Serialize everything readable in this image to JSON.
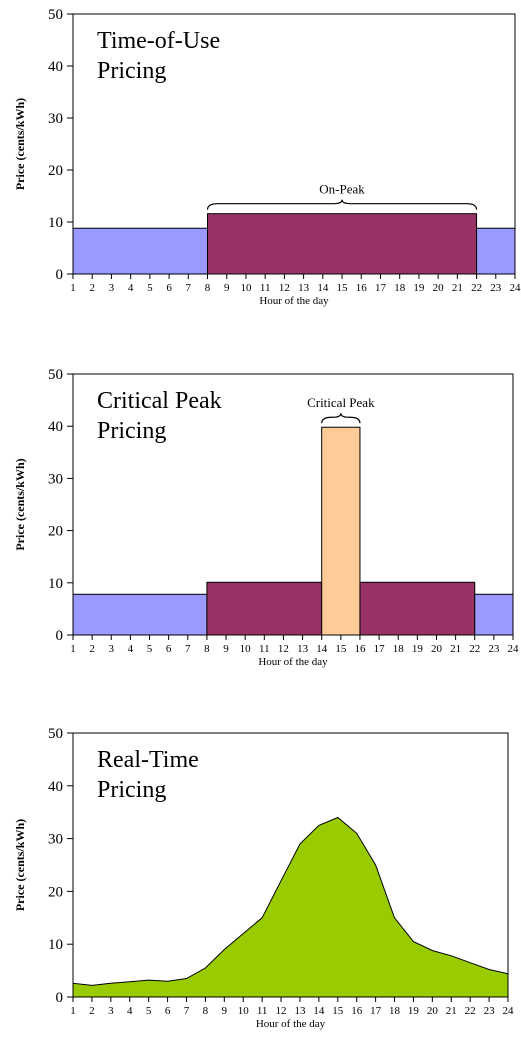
{
  "chart_data": [
    {
      "type": "bar",
      "title_lines": [
        "Time-of-Use",
        "Pricing"
      ],
      "xlabel": "Hour of the day",
      "ylabel": "Price (cents/kWh)",
      "ylim": [
        0,
        50
      ],
      "yticks": [
        0,
        10,
        20,
        30,
        40,
        50
      ],
      "xticks": [
        1,
        2,
        3,
        4,
        5,
        6,
        7,
        8,
        9,
        10,
        11,
        12,
        13,
        14,
        15,
        16,
        17,
        18,
        19,
        20,
        21,
        22,
        23,
        24
      ],
      "segments": [
        {
          "start": 1,
          "end": 8,
          "value": 8.8,
          "color": "#9999ff"
        },
        {
          "start": 8,
          "end": 22,
          "value": 11.6,
          "color": "#993366"
        },
        {
          "start": 22,
          "end": 24,
          "value": 8.8,
          "color": "#9999ff"
        }
      ],
      "annotation": {
        "text": "On-Peak",
        "start": 8,
        "end": 22
      },
      "grid": false
    },
    {
      "type": "bar",
      "title_lines": [
        "Critical Peak",
        "Pricing"
      ],
      "xlabel": "Hour of the day",
      "ylabel": "Price (cents/kWh)",
      "ylim": [
        0,
        50
      ],
      "yticks": [
        0,
        10,
        20,
        30,
        40,
        50
      ],
      "xticks": [
        1,
        2,
        3,
        4,
        5,
        6,
        7,
        8,
        9,
        10,
        11,
        12,
        13,
        14,
        15,
        16,
        17,
        18,
        19,
        20,
        21,
        22,
        23,
        24
      ],
      "segments": [
        {
          "start": 1,
          "end": 8,
          "value": 7.8,
          "color": "#9999ff"
        },
        {
          "start": 8,
          "end": 14,
          "value": 10.1,
          "color": "#993366"
        },
        {
          "start": 14,
          "end": 16,
          "value": 39.8,
          "color": "#ffcc99"
        },
        {
          "start": 16,
          "end": 22,
          "value": 10.1,
          "color": "#993366"
        },
        {
          "start": 22,
          "end": 24,
          "value": 7.8,
          "color": "#9999ff"
        }
      ],
      "annotation": {
        "text": "Critical Peak",
        "start": 14,
        "end": 16
      },
      "grid": false
    },
    {
      "type": "area",
      "title_lines": [
        "Real-Time",
        "Pricing"
      ],
      "xlabel": "Hour of the day",
      "ylabel": "Price (cents/kWh)",
      "ylim": [
        0,
        50
      ],
      "yticks": [
        0,
        10,
        20,
        30,
        40,
        50
      ],
      "x": [
        1,
        2,
        3,
        4,
        5,
        6,
        7,
        8,
        9,
        10,
        11,
        12,
        13,
        14,
        15,
        16,
        17,
        18,
        19,
        20,
        21,
        22,
        23,
        24
      ],
      "values": [
        2.6,
        2.2,
        2.6,
        2.9,
        3.2,
        3.0,
        3.5,
        5.5,
        9.0,
        12.0,
        15.0,
        22.0,
        29.0,
        32.5,
        34.0,
        31.0,
        25.0,
        15.0,
        10.5,
        8.8,
        7.8,
        6.5,
        5.2,
        4.4
      ],
      "color": "#99cc00",
      "grid": false
    }
  ]
}
